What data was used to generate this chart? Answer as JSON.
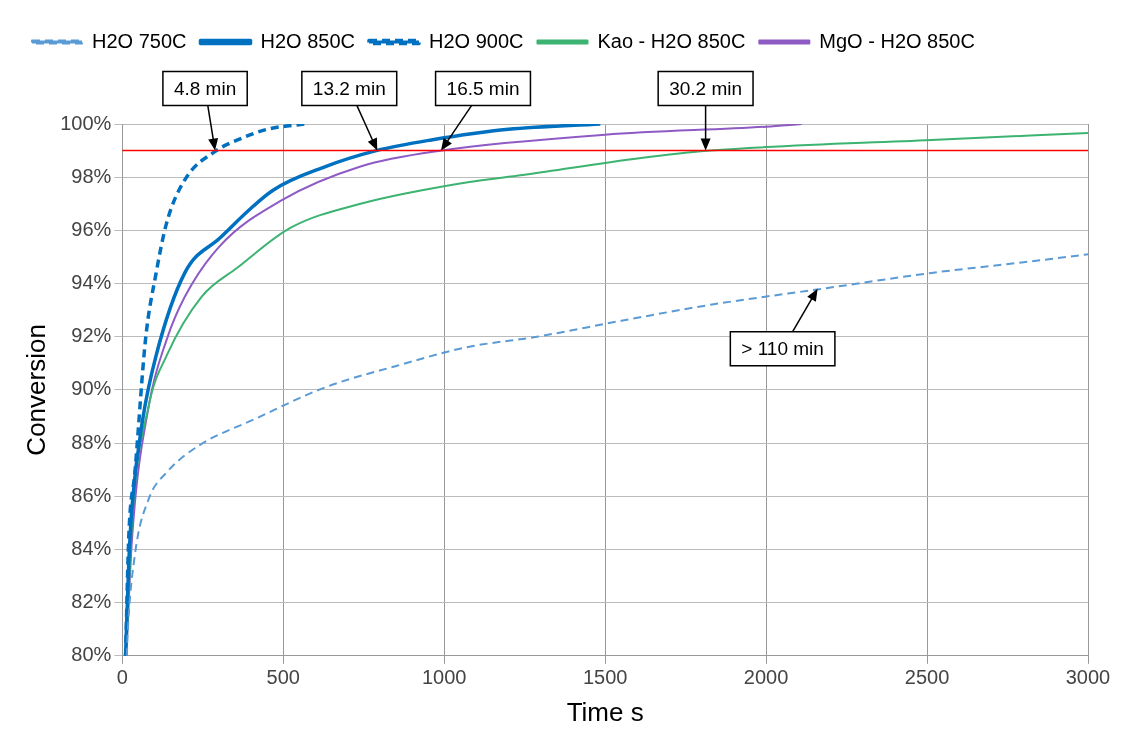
{
  "chart_data": {
    "type": "line",
    "xlabel": "Time s",
    "ylabel": "Conversion",
    "xlim": [
      0,
      3000
    ],
    "xticks": [
      0,
      500,
      1000,
      1500,
      2000,
      2500,
      3000
    ],
    "ylim": [
      80,
      100
    ],
    "yticks": [
      {
        "value": 80,
        "label": "80%"
      },
      {
        "value": 82,
        "label": "82%"
      },
      {
        "value": 84,
        "label": "84%"
      },
      {
        "value": 86,
        "label": "86%"
      },
      {
        "value": 88,
        "label": "88%"
      },
      {
        "value": 90,
        "label": "90%"
      },
      {
        "value": 92,
        "label": "92%"
      },
      {
        "value": 94,
        "label": "94%"
      },
      {
        "value": 96,
        "label": "96%"
      },
      {
        "value": 98,
        "label": "98%"
      },
      {
        "value": 100,
        "label": "100%"
      }
    ],
    "grid": true,
    "legend": "top",
    "marker": "none",
    "series": [
      {
        "name": "H2O 750C",
        "color": "#5b9bd5",
        "line_style": "dashed",
        "x": [
          14,
          16,
          39,
          82,
          138,
          237,
          411,
          631,
          851,
          1068,
          1288,
          1550,
          1827,
          2172,
          2514,
          2800,
          3000
        ],
        "values": [
          80,
          80.7,
          83.8,
          85.9,
          86.9,
          87.9,
          88.9,
          90.1,
          90.9,
          91.6,
          92.0,
          92.6,
          93.2,
          93.8,
          94.4,
          94.8,
          95.1
        ]
      },
      {
        "name": "H2O 850C",
        "color": "#0070c0",
        "line_style": "solid",
        "x": [
          10,
          20,
          30,
          62,
          105,
          194,
          302,
          467,
          631,
          789,
          960,
          1200,
          1485
        ],
        "values": [
          80,
          83.5,
          85.6,
          88.8,
          91.3,
          94.4,
          95.7,
          97.5,
          98.4,
          99.0,
          99.4,
          99.8,
          100
        ]
      },
      {
        "name": "H2O 900C",
        "color": "#0070c0",
        "line_style": "dashed",
        "x": [
          10,
          20,
          39,
          72,
          105,
          138,
          194,
          292,
          358,
          450,
          565
        ],
        "values": [
          80,
          84.5,
          86.9,
          91.9,
          94.4,
          96.3,
          97.9,
          99.0,
          99.4,
          99.8,
          100
        ]
      },
      {
        "name": "Kao - H2O 850C",
        "color": "#3cb371",
        "line_style": "solid",
        "x": [
          12,
          30,
          82,
          138,
          246,
          358,
          523,
          740,
          1068,
          1255,
          1600,
          1827,
          2514,
          3000
        ],
        "values": [
          80,
          85.0,
          89.4,
          91.3,
          93.5,
          94.6,
          96.1,
          97.0,
          97.8,
          98.1,
          98.7,
          99.0,
          99.4,
          99.66
        ]
      },
      {
        "name": "MgO - H2O 850C",
        "color": "#8e5bc4",
        "line_style": "solid",
        "x": [
          12,
          30,
          82,
          138,
          194,
          302,
          490,
          740,
          992,
          1500,
          2000,
          2110
        ],
        "values": [
          80,
          84.4,
          89.4,
          91.9,
          93.5,
          95.4,
          97.1,
          98.4,
          99.0,
          99.6,
          99.9,
          100
        ]
      }
    ],
    "ref_lines": [
      {
        "axis": "y",
        "value": 99,
        "color": "#ff0000"
      }
    ],
    "annotations": [
      {
        "text": "4.8 min",
        "x": 288,
        "y": 99
      },
      {
        "text": "13.2 min",
        "x": 792,
        "y": 99
      },
      {
        "text": "16.5 min",
        "x": 990,
        "y": 99
      },
      {
        "text": "30.2 min",
        "x": 1812,
        "y": 99
      },
      {
        "text": "> 110 min",
        "x": 2160,
        "y": 93.8
      }
    ]
  }
}
